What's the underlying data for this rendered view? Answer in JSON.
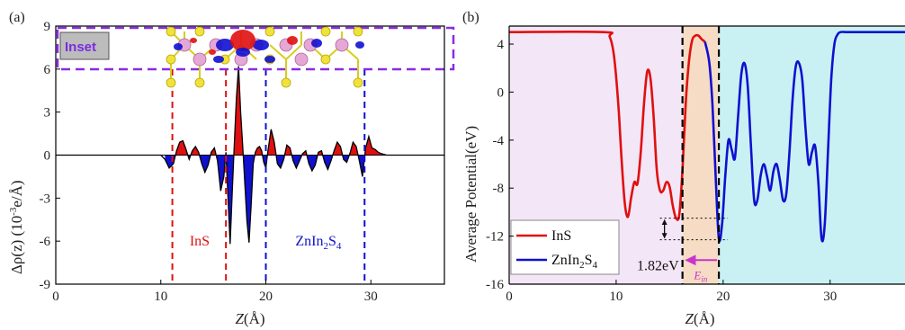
{
  "colors": {
    "red": "#e01010",
    "blue": "#1010d0",
    "purple_dash": "#8a2be2",
    "region_ins": "#f3e6f6",
    "region_interface": "#f6dcc4",
    "region_znins": "#c9f1f4",
    "inset_box": "#bcbcbc",
    "gap_arrow": "#cc33cc"
  },
  "chart_data": [
    {
      "panel": "(a)",
      "type": "area",
      "ylabel_parts": [
        "Δρ(z) (10",
        "-3",
        "e/Å)"
      ],
      "xlabel": "Z(Å)",
      "xlim": [
        0,
        37
      ],
      "ylim": [
        -9,
        9
      ],
      "xticks": [
        0,
        10,
        20,
        30
      ],
      "yticks": [
        9,
        6,
        3,
        0,
        -3,
        -6,
        -9
      ],
      "grid": false,
      "inset_label": "Inset",
      "region_labels": [
        {
          "text": "InS",
          "x": 13.7,
          "y": -6,
          "color": "red"
        },
        {
          "text": "ZnIn",
          "sub": "2",
          "text2": "S",
          "sub2": "4",
          "x": 25,
          "y": -6,
          "color": "blue"
        }
      ],
      "vlines": [
        {
          "x": 11.1,
          "color": "red"
        },
        {
          "x": 16.2,
          "color": "red"
        },
        {
          "x": 20.0,
          "color": "blue"
        },
        {
          "x": 29.4,
          "color": "blue"
        }
      ],
      "x": [
        0,
        10.0,
        10.4,
        10.8,
        11.2,
        11.5,
        11.8,
        12.1,
        12.4,
        12.7,
        13.0,
        13.3,
        13.6,
        13.9,
        14.2,
        14.5,
        14.8,
        15.1,
        15.4,
        15.7,
        16.0,
        16.2,
        16.4,
        16.6,
        16.8,
        17.0,
        17.2,
        17.4,
        17.6,
        17.8,
        18.0,
        18.2,
        18.4,
        18.6,
        18.8,
        19.0,
        19.2,
        19.4,
        19.6,
        19.8,
        20.0,
        20.2,
        20.5,
        20.8,
        21.1,
        21.4,
        21.7,
        22.0,
        22.3,
        22.6,
        22.9,
        23.2,
        23.5,
        23.8,
        24.1,
        24.4,
        24.7,
        25.0,
        25.3,
        25.6,
        25.9,
        26.2,
        26.5,
        26.8,
        27.1,
        27.4,
        27.7,
        28.0,
        28.3,
        28.6,
        28.9,
        29.2,
        29.5,
        29.8,
        30.1,
        30.4,
        30.7,
        31.0,
        31.5,
        37
      ],
      "y": [
        0,
        0,
        -0.3,
        -0.9,
        -0.6,
        0.3,
        0.9,
        1.0,
        0.4,
        -0.3,
        0.3,
        0.6,
        0.2,
        -0.6,
        -1.2,
        -0.7,
        0.2,
        0.5,
        -0.4,
        -2.5,
        -1.5,
        0.2,
        -3.0,
        -6.2,
        -2.6,
        0.8,
        4.0,
        6.2,
        3.0,
        0.6,
        -2.0,
        -4.6,
        -6.1,
        -3.5,
        -0.6,
        0.2,
        0.5,
        0.6,
        0.3,
        -0.5,
        -0.9,
        0.3,
        1.8,
        0.9,
        -0.6,
        -0.9,
        -0.3,
        0.7,
        0.5,
        -0.4,
        -0.9,
        -0.4,
        0.1,
        0.3,
        -0.6,
        -1.1,
        -0.7,
        0.2,
        0.3,
        -0.5,
        -1.0,
        -0.4,
        0.3,
        0.9,
        0.6,
        -0.3,
        -0.5,
        0.1,
        0.9,
        0.6,
        -0.4,
        -1.5,
        0.5,
        1.3,
        0.5,
        0.4,
        0.2,
        0.1,
        0,
        0
      ]
    },
    {
      "panel": "(b)",
      "type": "line",
      "ylabel": "Average Potential(eV)",
      "xlabel": "Z(Å)",
      "xlim": [
        0,
        37
      ],
      "ylim": [
        -16,
        5.5
      ],
      "xticks": [
        0,
        10,
        20,
        30
      ],
      "yticks": [
        4,
        0,
        -4,
        -8,
        -12,
        -16
      ],
      "grid": false,
      "legend_position": "bottom-left",
      "regions": [
        {
          "from": 0,
          "to": 16.2,
          "color": "region_ins"
        },
        {
          "from": 16.2,
          "to": 19.6,
          "color": "region_interface"
        },
        {
          "from": 19.6,
          "to": 37,
          "color": "region_znins"
        }
      ],
      "dashed_vlines": [
        16.2,
        19.6
      ],
      "annotation_gap": "1.82eV",
      "annotation_gap_levels": [
        -10.5,
        -12.3
      ],
      "annotation_ein": "E",
      "annotation_ein_sub": "in",
      "series": [
        {
          "name": "InS",
          "color": "red",
          "x": [
            0,
            8.8,
            9.4,
            9.8,
            10.2,
            10.5,
            10.8,
            11.1,
            11.4,
            11.7,
            12.0,
            12.3,
            12.6,
            12.9,
            13.2,
            13.5,
            13.8,
            14.1,
            14.4,
            14.7,
            15.0,
            15.3,
            15.6,
            15.9,
            16.2,
            16.5,
            16.8,
            17.1,
            17.4,
            17.7,
            18.0,
            18.3
          ],
          "y": [
            5.0,
            5.0,
            4.6,
            3.0,
            -1.0,
            -5.5,
            -9.2,
            -10.4,
            -8.8,
            -7.5,
            -7.6,
            -5.0,
            -1.0,
            1.7,
            1.2,
            -2.0,
            -6.5,
            -8.2,
            -8.2,
            -7.5,
            -7.9,
            -9.5,
            -10.5,
            -10.2,
            -6.5,
            -1.0,
            2.5,
            4.3,
            4.7,
            4.7,
            4.4,
            4.2
          ]
        },
        {
          "name": "ZnIn2S4",
          "label_parts": [
            "ZnIn",
            "2",
            "S",
            "4"
          ],
          "color": "blue",
          "x": [
            18.3,
            18.7,
            19.0,
            19.3,
            19.6,
            19.9,
            20.2,
            20.5,
            20.8,
            21.1,
            21.4,
            21.7,
            22.0,
            22.3,
            22.6,
            22.9,
            23.2,
            23.5,
            23.8,
            24.1,
            24.4,
            24.7,
            25.0,
            25.3,
            25.6,
            25.9,
            26.2,
            26.5,
            26.8,
            27.1,
            27.4,
            27.7,
            28.0,
            28.3,
            28.6,
            28.9,
            29.2,
            29.5,
            29.8,
            30.1,
            30.4,
            30.7,
            31.0,
            31.5,
            32.0,
            37
          ],
          "y": [
            4.2,
            2.5,
            -1.0,
            -7.0,
            -12.2,
            -11.0,
            -7.0,
            -4.0,
            -4.8,
            -5.5,
            -2.0,
            1.5,
            2.4,
            0.5,
            -4.5,
            -9.0,
            -9.0,
            -7.0,
            -6.0,
            -7.0,
            -8.2,
            -6.6,
            -6.0,
            -7.3,
            -9.0,
            -8.5,
            -5.0,
            -0.5,
            2.2,
            2.4,
            1.0,
            -3.0,
            -6.0,
            -5.0,
            -4.5,
            -7.5,
            -12.2,
            -11.0,
            -5.0,
            1.0,
            4.0,
            4.8,
            5.0,
            5.0,
            5.0,
            5.0
          ]
        }
      ]
    }
  ]
}
